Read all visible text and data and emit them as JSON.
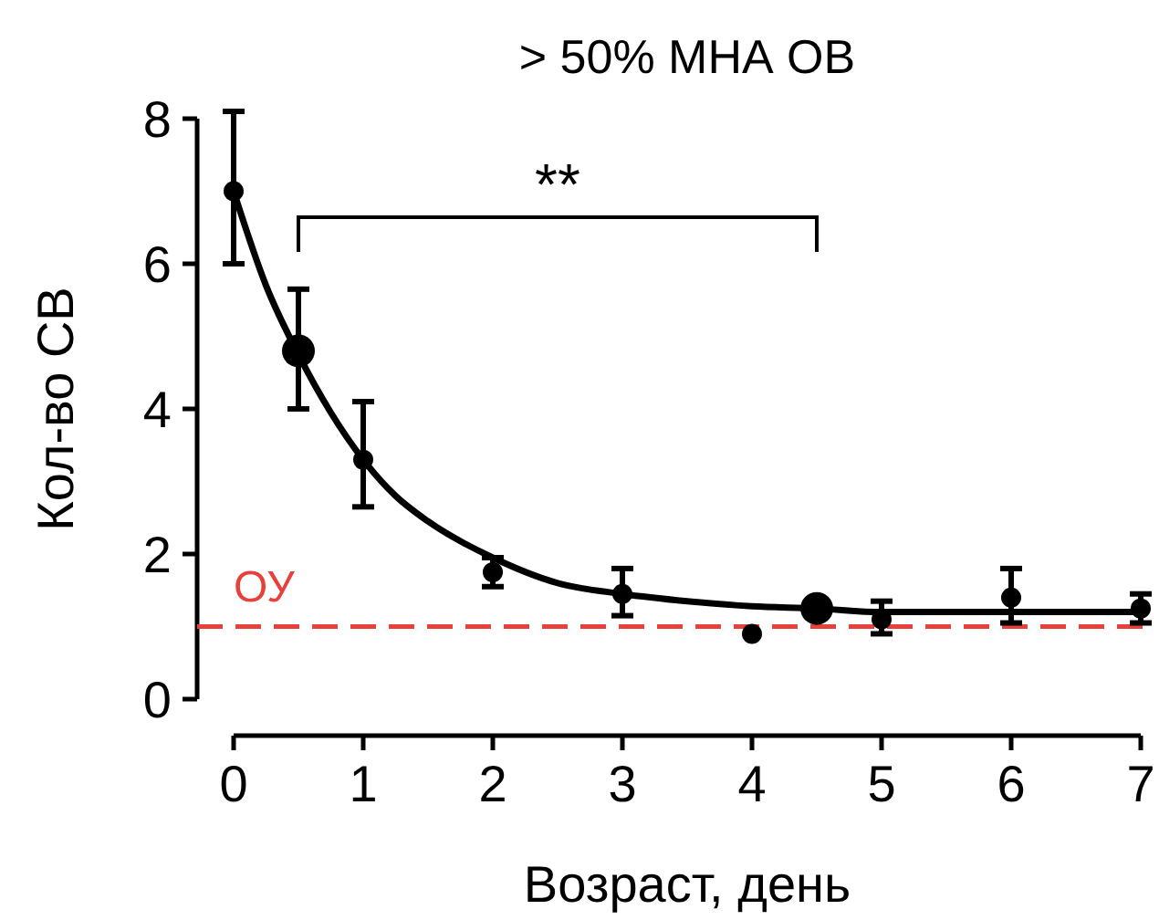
{
  "chart_data": {
    "type": "scatter",
    "title": "> 50% МНА ОВ",
    "xlabel": "Возраст, день",
    "ylabel": "Кол-во СВ",
    "xlim": [
      0,
      7
    ],
    "xticks": [
      0,
      1,
      2,
      3,
      4,
      5,
      6,
      7
    ],
    "ylim": [
      0,
      8
    ],
    "yticks": [
      0,
      2,
      4,
      6,
      8
    ],
    "grid": false,
    "series": [
      {
        "type": "line",
        "color": "#000000",
        "x": [
          0,
          0.25,
          0.5,
          0.75,
          1,
          1.25,
          1.5,
          2,
          2.5,
          3,
          3.5,
          4,
          4.5,
          5,
          6,
          7
        ],
        "values": [
          7,
          5.7,
          4.75,
          3.95,
          3.3,
          2.8,
          2.45,
          1.95,
          1.6,
          1.45,
          1.35,
          1.28,
          1.25,
          1.2,
          1.2,
          1.2
        ]
      },
      {
        "color": "#000000",
        "marker": "circle",
        "x": [
          0,
          1,
          2,
          3,
          4,
          5,
          6,
          7
        ],
        "values": [
          7,
          3.3,
          1.75,
          1.45,
          0.9,
          1.1,
          1.4,
          1.25
        ],
        "errors": [
          [
            6,
            8.1
          ],
          [
            2.65,
            4.1
          ],
          [
            1.55,
            1.95
          ],
          [
            1.15,
            1.8
          ],
          null,
          [
            0.9,
            1.35
          ],
          [
            1.05,
            1.8
          ],
          [
            1.05,
            1.45
          ]
        ]
      },
      {
        "color": "#000000",
        "marker": "circle",
        "x": [
          0.5,
          4.5
        ],
        "values": [
          4.8,
          1.25
        ],
        "errors": [
          [
            4,
            5.65
          ],
          null
        ]
      }
    ],
    "ref_lines": [
      {
        "axis": "y",
        "value": 1,
        "label": "ОУ",
        "color": "#e8413c",
        "line_style": "dashed"
      }
    ],
    "annotations": [
      "**"
    ]
  }
}
